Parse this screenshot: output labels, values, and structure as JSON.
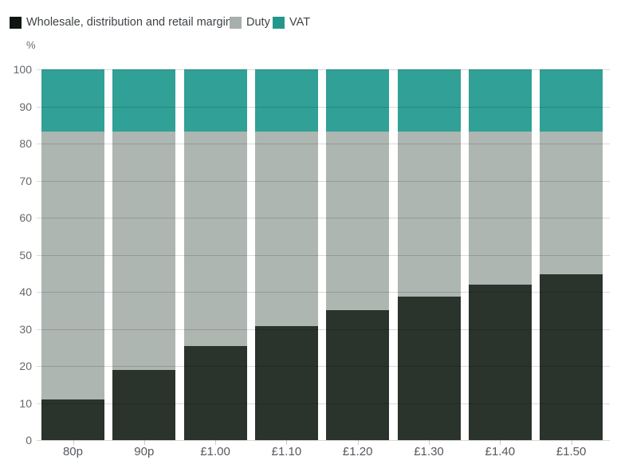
{
  "y_axis_title": "%",
  "chart_data": {
    "type": "bar",
    "variant": "stacked-percentage-column",
    "title": "",
    "xlabel": "",
    "ylabel": "%",
    "ylim": [
      0,
      100
    ],
    "ytick_step": 10,
    "ytick_labels": [
      "0",
      "10",
      "20",
      "30",
      "40",
      "50",
      "60",
      "70",
      "80",
      "90",
      "100"
    ],
    "grid": "horizontal gridlines drawn over bars",
    "legend_position": "top-left",
    "categories": [
      "80p",
      "90p",
      "£1.00",
      "£1.10",
      "£1.20",
      "£1.30",
      "£1.40",
      "£1.50"
    ],
    "series": [
      {
        "name": "Wholesale, distribution and retail margin",
        "legend_color": "#0e1711",
        "bar_color": "#2a332c",
        "values": [
          10.9,
          18.9,
          25.4,
          30.7,
          35.0,
          38.8,
          42.0,
          44.7
        ]
      },
      {
        "name": "Duty",
        "legend_color": "#a6afab",
        "bar_color": "#aeb6b2",
        "values": [
          72.4,
          64.4,
          57.9,
          52.6,
          48.3,
          44.5,
          41.3,
          38.6
        ]
      },
      {
        "name": "VAT",
        "legend_color": "#23978b",
        "bar_color": "#31a096",
        "values": [
          16.7,
          16.7,
          16.7,
          16.7,
          16.7,
          16.7,
          16.7,
          16.7
        ]
      }
    ]
  }
}
